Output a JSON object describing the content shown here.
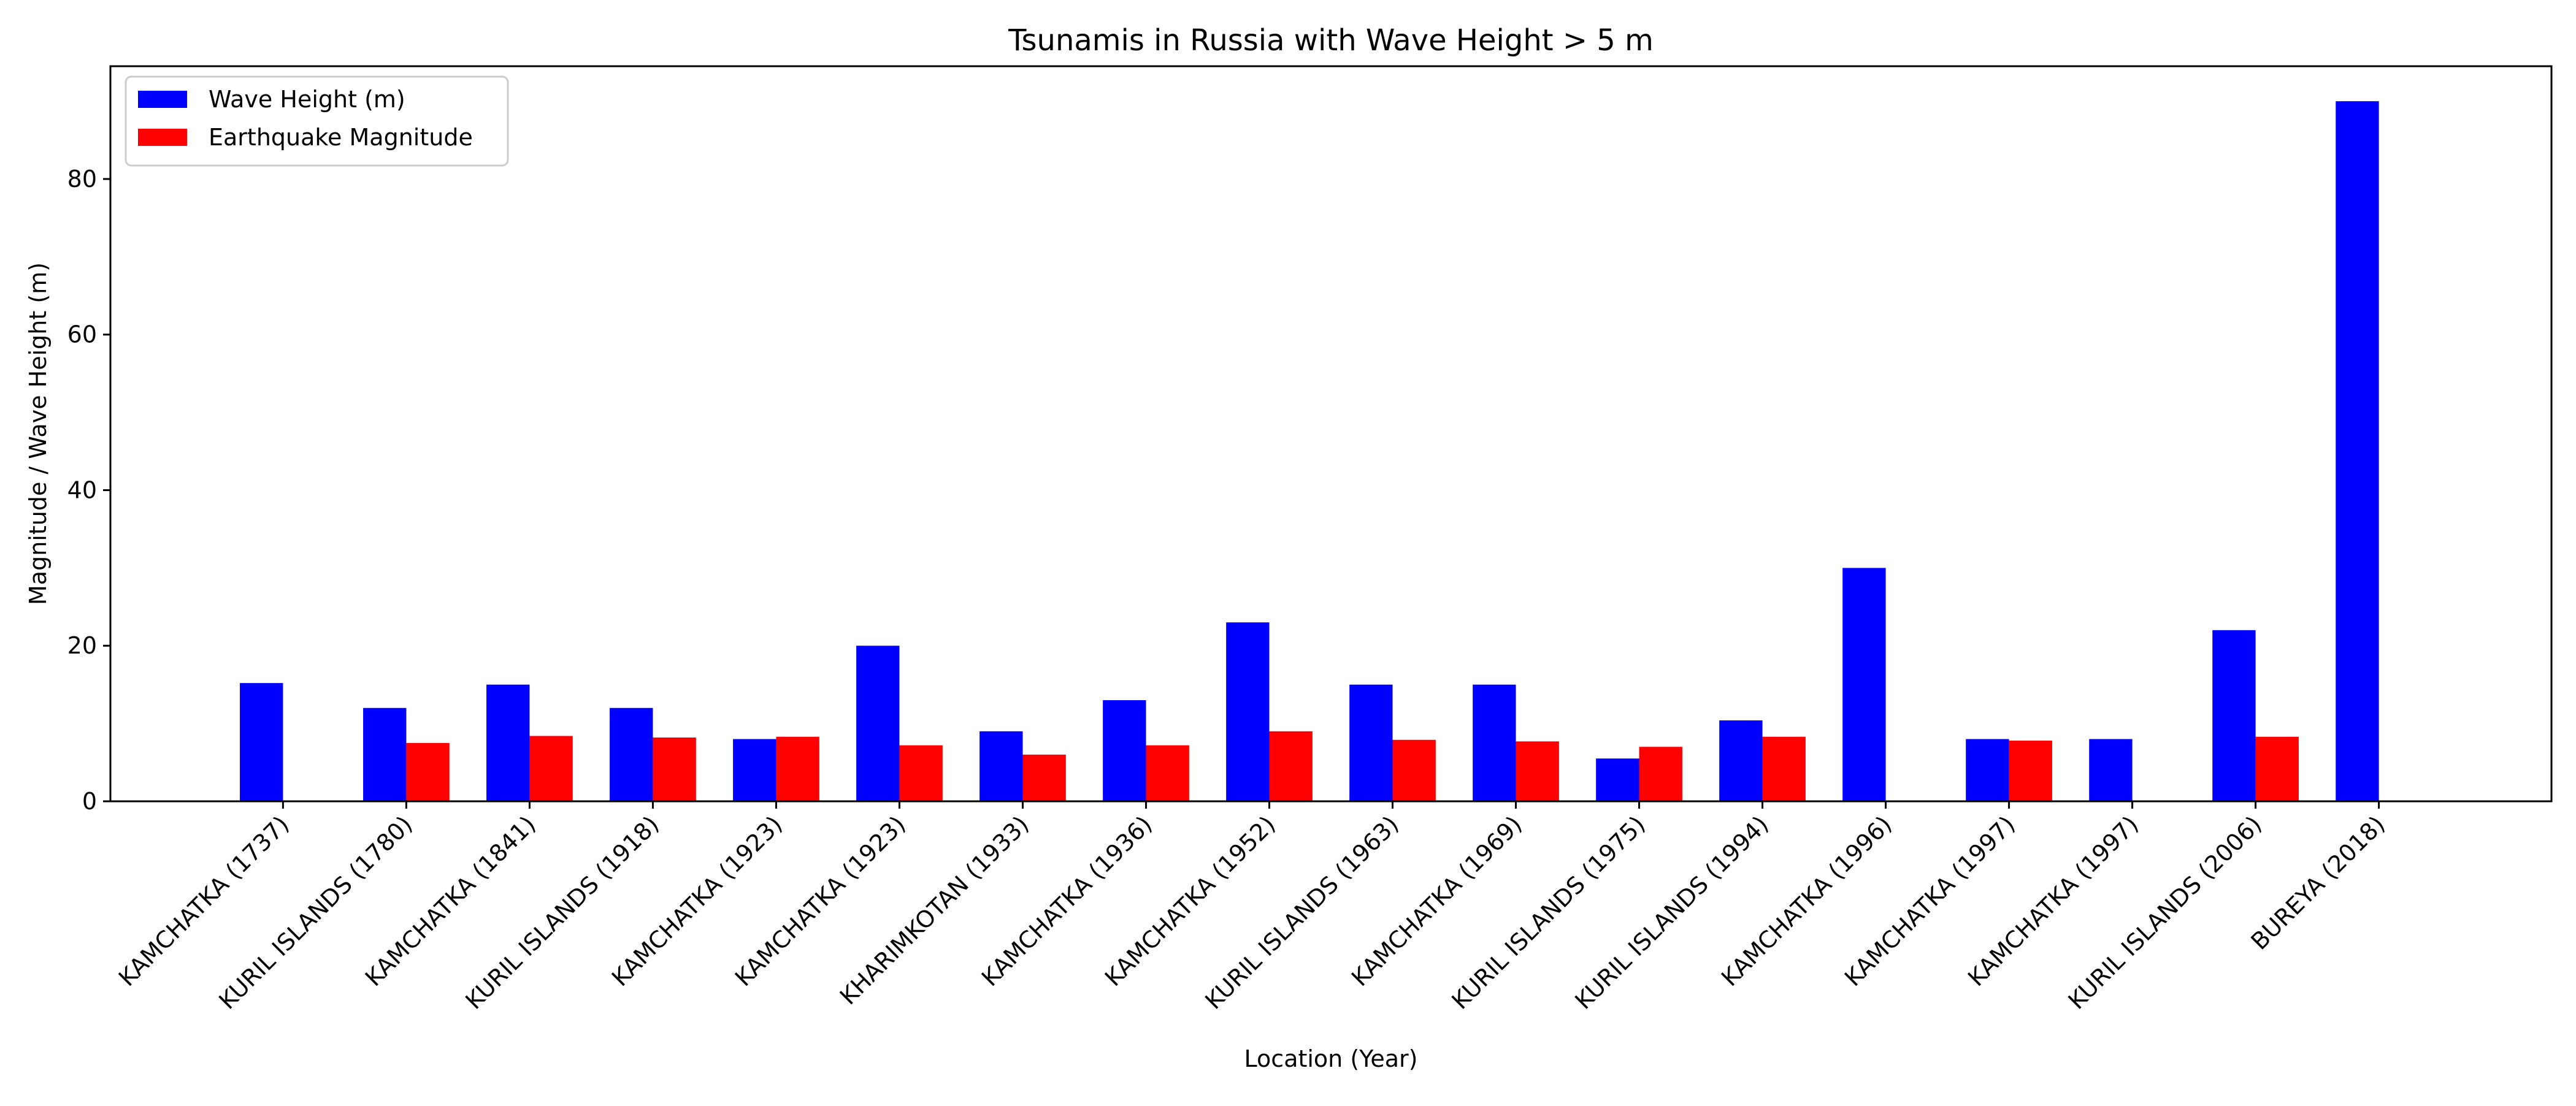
{
  "chart_data": {
    "type": "bar",
    "title": "Tsunamis in Russia with Wave Height > 5 m",
    "xlabel": "Location (Year)",
    "ylabel": "Magnitude / Wave Height (m)",
    "ylim": [
      0,
      94.5
    ],
    "yticks": [
      0,
      20,
      40,
      60,
      80
    ],
    "grid": false,
    "legend_position": "top-left",
    "categories": [
      "KAMCHATKA (1737)",
      "KURIL ISLANDS (1780)",
      "KAMCHATKA (1841)",
      "KURIL ISLANDS (1918)",
      "KAMCHATKA (1923)",
      "KAMCHATKA (1923)",
      "KHARIMKOTAN (1933)",
      "KAMCHATKA (1936)",
      "KAMCHATKA (1952)",
      "KURIL ISLANDS (1963)",
      "KAMCHATKA (1969)",
      "KURIL ISLANDS (1975)",
      "KURIL ISLANDS (1994)",
      "KAMCHATKA (1996)",
      "KAMCHATKA (1997)",
      "KAMCHATKA (1997)",
      "KURIL ISLANDS (2006)",
      "BUREYA (2018)"
    ],
    "series": [
      {
        "name": "Wave Height (m)",
        "color": "#0000ff",
        "values": [
          15.2,
          12.0,
          15.0,
          12.0,
          8.0,
          20.0,
          9.0,
          13.0,
          23.0,
          15.0,
          15.0,
          5.5,
          10.4,
          30.0,
          8.0,
          8.0,
          22.0,
          90.0
        ]
      },
      {
        "name": "Earthquake Magnitude",
        "color": "#ff0000",
        "values": [
          null,
          7.5,
          8.4,
          8.2,
          8.3,
          7.2,
          6.0,
          7.2,
          9.0,
          7.9,
          7.7,
          7.0,
          8.3,
          null,
          7.8,
          null,
          8.3,
          null
        ]
      }
    ]
  }
}
